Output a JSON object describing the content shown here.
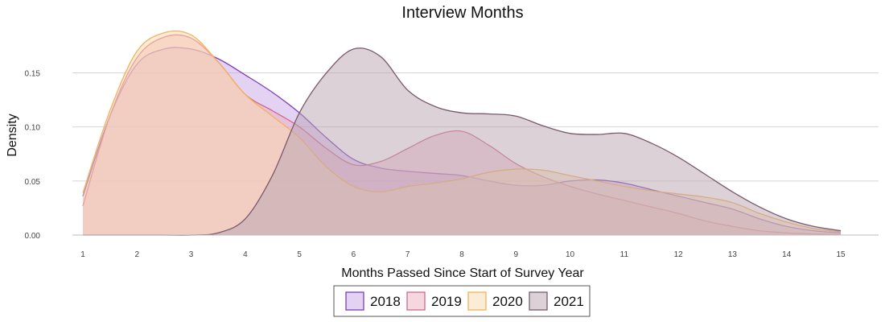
{
  "chart_data": {
    "type": "area",
    "subtype": "density",
    "title": "Interview Months",
    "xlabel": "Months Passed Since Start of Survey Year",
    "ylabel": "Density",
    "xlim": [
      1,
      15
    ],
    "ylim": [
      0,
      0.195
    ],
    "x_ticks": [
      1,
      2,
      3,
      4,
      5,
      6,
      7,
      8,
      9,
      10,
      11,
      12,
      13,
      14,
      15
    ],
    "y_ticks": [
      0.0,
      0.05,
      0.1,
      0.15
    ],
    "y_tick_labels": [
      "0.00",
      "0.05",
      "0.10",
      "0.15"
    ],
    "grid": "horizontal",
    "legend_position": "bottom",
    "x": [
      1,
      1.5,
      2,
      2.5,
      3,
      3.5,
      4,
      4.5,
      5,
      5.5,
      6,
      6.5,
      7,
      7.5,
      8,
      8.5,
      9,
      9.5,
      10,
      10.5,
      11,
      11.5,
      12,
      12.5,
      13,
      13.5,
      14,
      14.5,
      15
    ],
    "series": [
      {
        "name": "2018",
        "color": "#7b3fb8",
        "fill": "#c9a6e6",
        "values": [
          0.036,
          0.11,
          0.158,
          0.172,
          0.172,
          0.163,
          0.148,
          0.132,
          0.113,
          0.09,
          0.07,
          0.062,
          0.059,
          0.057,
          0.055,
          0.05,
          0.046,
          0.046,
          0.05,
          0.051,
          0.048,
          0.042,
          0.036,
          0.03,
          0.024,
          0.015,
          0.008,
          0.004,
          0.002
        ]
      },
      {
        "name": "2019",
        "color": "#d06a8c",
        "fill": "#eab0bf",
        "values": [
          0.027,
          0.11,
          0.164,
          0.183,
          0.182,
          0.16,
          0.13,
          0.115,
          0.1,
          0.08,
          0.065,
          0.068,
          0.08,
          0.092,
          0.096,
          0.083,
          0.066,
          0.054,
          0.045,
          0.038,
          0.032,
          0.026,
          0.02,
          0.013,
          0.008,
          0.004,
          0.002,
          0.001,
          0.0005
        ]
      },
      {
        "name": "2020",
        "color": "#f2b25c",
        "fill": "#fbd9ac",
        "values": [
          0.039,
          0.115,
          0.17,
          0.187,
          0.185,
          0.16,
          0.13,
          0.11,
          0.09,
          0.063,
          0.045,
          0.04,
          0.045,
          0.048,
          0.052,
          0.058,
          0.061,
          0.06,
          0.055,
          0.05,
          0.045,
          0.041,
          0.038,
          0.035,
          0.03,
          0.02,
          0.012,
          0.006,
          0.003
        ]
      },
      {
        "name": "2021",
        "color": "#7a5a6b",
        "fill": "#b9a3b0",
        "values": [
          0.0,
          0.0,
          0.0,
          0.0,
          0.0,
          0.002,
          0.015,
          0.055,
          0.113,
          0.15,
          0.172,
          0.165,
          0.134,
          0.119,
          0.113,
          0.112,
          0.11,
          0.101,
          0.094,
          0.093,
          0.094,
          0.085,
          0.072,
          0.056,
          0.04,
          0.026,
          0.015,
          0.008,
          0.004
        ]
      }
    ]
  }
}
